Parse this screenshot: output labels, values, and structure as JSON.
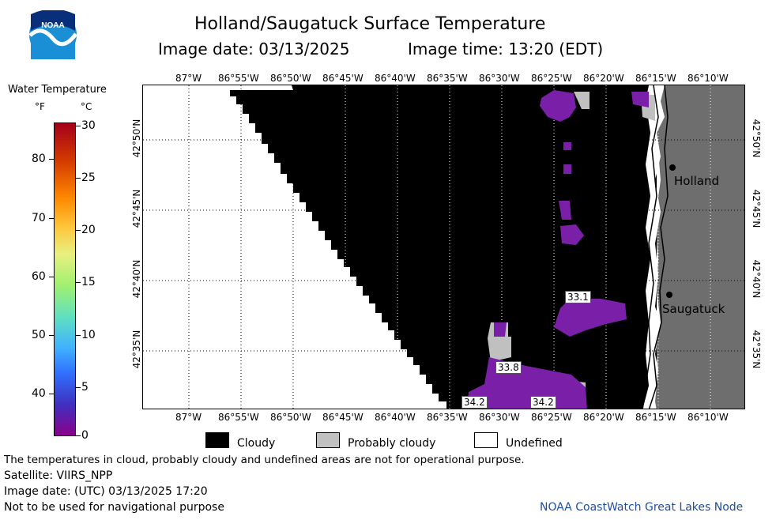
{
  "header": {
    "title": "Holland/Saugatuck Surface Temperature",
    "image_date": "Image date: 03/13/2025",
    "image_time": "Image time: 13:20 (EDT)"
  },
  "colorbar": {
    "title": "Water Temperature",
    "unit_f": "°F",
    "unit_c": "°C",
    "f_ticks": [
      "80",
      "70",
      "60",
      "50",
      "40"
    ],
    "c_ticks": [
      "30",
      "25",
      "20",
      "15",
      "10",
      "5",
      "0"
    ]
  },
  "axes": {
    "lon_labels": [
      "87°W",
      "86°55'W",
      "86°50'W",
      "86°45'W",
      "86°40'W",
      "86°35'W",
      "86°30'W",
      "86°25'W",
      "86°20'W",
      "86°15'W",
      "86°10'W"
    ],
    "lat_labels": [
      "42°50'N",
      "42°45'N",
      "42°40'N",
      "42°35'N"
    ]
  },
  "places": {
    "holland": "Holland",
    "saugatuck": "Saugatuck"
  },
  "temp_labels": [
    "33.1",
    "33.8",
    "34.2",
    "34.2"
  ],
  "legend": {
    "cloudy": "Cloudy",
    "probably_cloudy": "Probably cloudy",
    "undefined": "Undefined"
  },
  "footer": {
    "disclaimer": "The temperatures in cloud, probably cloudy and undefined areas are not for operational purpose.",
    "satellite": "Satellite: VIIRS_NPP",
    "utc_date": "Image date: (UTC) 03/13/2025  17:20",
    "nav_warning": "Not to be used for navigational purpose",
    "credit": "NOAA CoastWatch Great Lakes Node"
  },
  "colors": {
    "cloud": "#000000",
    "probably_cloudy": "#c0c0c0",
    "land": "#6e6e6e",
    "water_cold": "#7a1fa8",
    "credit": "#1f4fa0"
  },
  "logo": {
    "text": "NOAA"
  }
}
